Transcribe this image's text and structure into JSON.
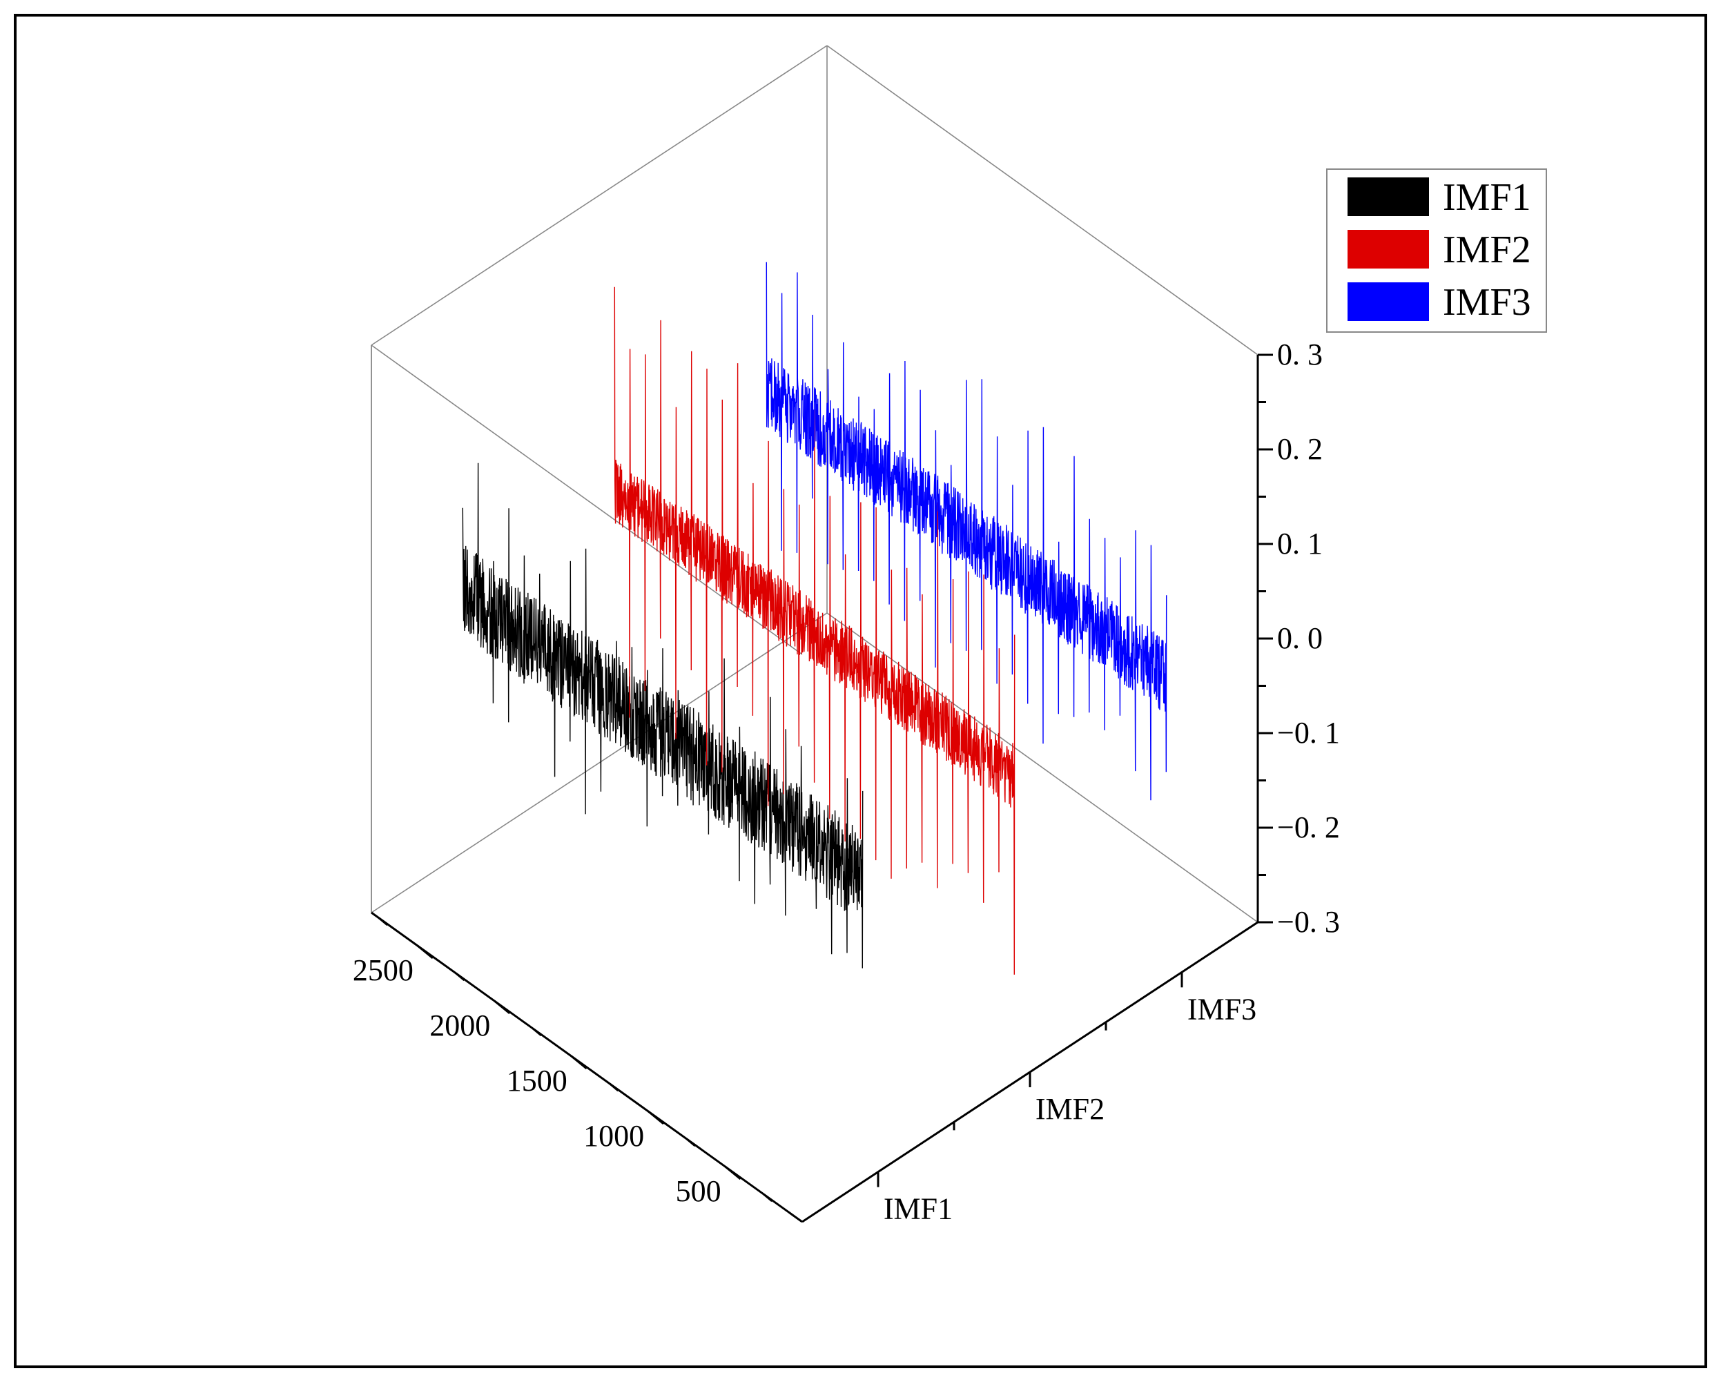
{
  "chart_data": {
    "type": "line",
    "subtype": "3d-waterfall",
    "title": "",
    "xlabel": "",
    "ylabel": "",
    "zlabel": "",
    "x_ticks": [
      "500",
      "1000",
      "1500",
      "2000",
      "2500"
    ],
    "x_range": [
      0,
      2800
    ],
    "y_categories": [
      "IMF1",
      "IMF2",
      "IMF3"
    ],
    "z_ticks": [
      "0. 3",
      "0. 2",
      "0. 1",
      "0. 0",
      "−0. 1",
      "−0. 2",
      "−0. 3"
    ],
    "z_tick_values": [
      0.3,
      0.2,
      0.1,
      0.0,
      -0.1,
      -0.2,
      -0.3
    ],
    "z_range": [
      -0.3,
      0.3
    ],
    "legend_position": "top-right",
    "grid": false,
    "series": [
      {
        "name": "IMF1",
        "color": "#000000",
        "x_start": 100,
        "x_end": 2700,
        "z_center": 0.0,
        "noise_amplitude": 0.05,
        "spike_interval": 100,
        "spike_amplitude": 0.11
      },
      {
        "name": "IMF2",
        "color": "#dd0000",
        "x_start": 100,
        "x_end": 2700,
        "z_center": 0.0,
        "noise_amplitude": 0.035,
        "spike_interval": 100,
        "spike_amplitude": 0.22
      },
      {
        "name": "IMF3",
        "color": "#0000ff",
        "x_start": 100,
        "x_end": 2700,
        "z_center": 0.0,
        "noise_amplitude": 0.04,
        "spike_interval": 100,
        "spike_amplitude": 0.15
      }
    ]
  }
}
